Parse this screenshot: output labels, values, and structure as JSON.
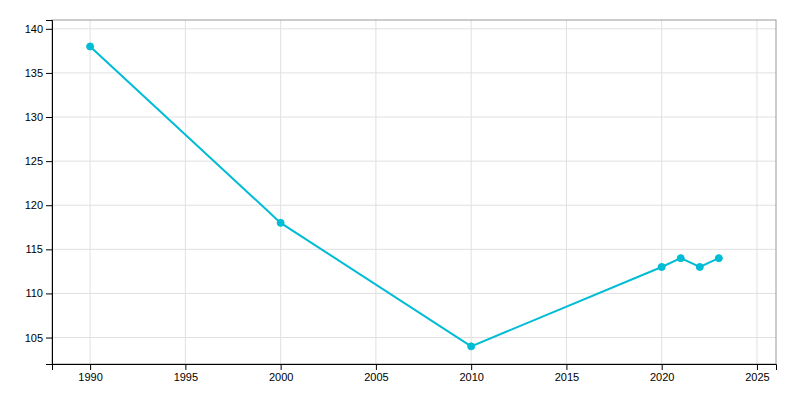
{
  "chart_data": {
    "type": "line",
    "x": [
      1990,
      2000,
      2010,
      2020,
      2021,
      2022,
      2023
    ],
    "values": [
      138,
      118,
      104,
      113,
      114,
      113,
      114
    ],
    "color": "#00bcd4",
    "marker": "circle",
    "xlim": [
      1988,
      2026
    ],
    "ylim": [
      102,
      141
    ],
    "xticks": [
      1990,
      1995,
      2000,
      2005,
      2010,
      2015,
      2020,
      2025
    ],
    "yticks": [
      105,
      110,
      115,
      120,
      125,
      130,
      135,
      140
    ],
    "grid": true
  }
}
